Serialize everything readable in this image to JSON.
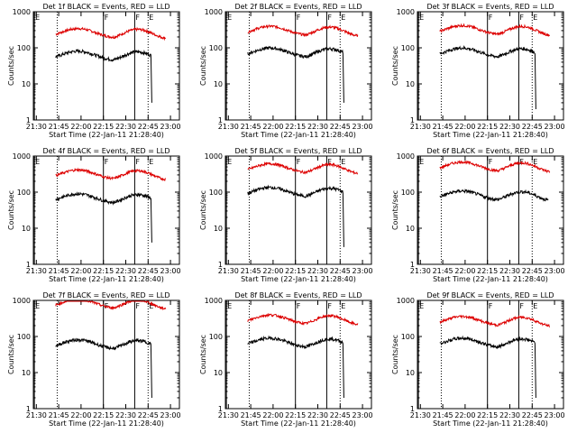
{
  "chart_data": {
    "type": "line",
    "common": {
      "title_suffix": "BLACK = Events, RED = LLD",
      "xlabel": "Start Time (22-Jan-11 21:28:40)",
      "ylabel": "Counts/sec",
      "x_ticks": [
        "21:30",
        "21:45",
        "22:00",
        "22:15",
        "22:30",
        "22:45",
        "23:00"
      ],
      "x_range": [
        "21:28",
        "23:06"
      ],
      "y_scale": "log",
      "y_range": [
        1,
        1000
      ],
      "y_ticks": [
        "1",
        "10",
        "100",
        "1000"
      ],
      "vertical_markers": [
        {
          "time": "21:28:40",
          "label": "E",
          "style": "solid"
        },
        {
          "time": "21:44",
          "label": "",
          "style": "dotted"
        },
        {
          "time": "22:15",
          "label": "F",
          "style": "solid"
        },
        {
          "time": "22:36",
          "label": "F",
          "style": "solid"
        },
        {
          "time": "22:45",
          "label": "E",
          "style": "dotted"
        }
      ],
      "series_colors": {
        "events": "#000000",
        "lld": "#dd0000"
      }
    },
    "panels": [
      {
        "title": "Det 1f BLACK = Events, RED = LLD",
        "red_scale": 1.9,
        "black_scale": 0.45,
        "black_end_drop": 3
      },
      {
        "title": "Det 2f BLACK = Events, RED = LLD",
        "red_scale": 2.2,
        "black_scale": 0.55,
        "black_end_drop": 3
      },
      {
        "title": "Det 3f BLACK = Events, RED = LLD",
        "red_scale": 2.3,
        "black_scale": 0.55,
        "black_end_drop": 2
      },
      {
        "title": "Det 4f BLACK = Events, RED = LLD",
        "red_scale": 2.3,
        "black_scale": 0.5,
        "black_end_drop": 4
      },
      {
        "title": "Det 5f BLACK = Events, RED = LLD",
        "red_scale": 3.4,
        "black_scale": 0.75,
        "black_end_drop": 3
      },
      {
        "title": "Det 6f BLACK = Events, RED = LLD",
        "red_scale": 3.8,
        "black_scale": 0.6,
        "black_end_drop": null
      },
      {
        "title": "Det 7f BLACK = Events, RED = LLD",
        "red_scale": 6.0,
        "black_scale": 0.45,
        "black_end_drop": 2
      },
      {
        "title": "Det 8f BLACK = Events, RED = LLD",
        "red_scale": 2.2,
        "black_scale": 0.5,
        "black_end_drop": 2
      },
      {
        "title": "Det 9f BLACK = Events, RED = LLD",
        "red_scale": 2.0,
        "black_scale": 0.5,
        "black_end_drop": 2
      }
    ]
  }
}
